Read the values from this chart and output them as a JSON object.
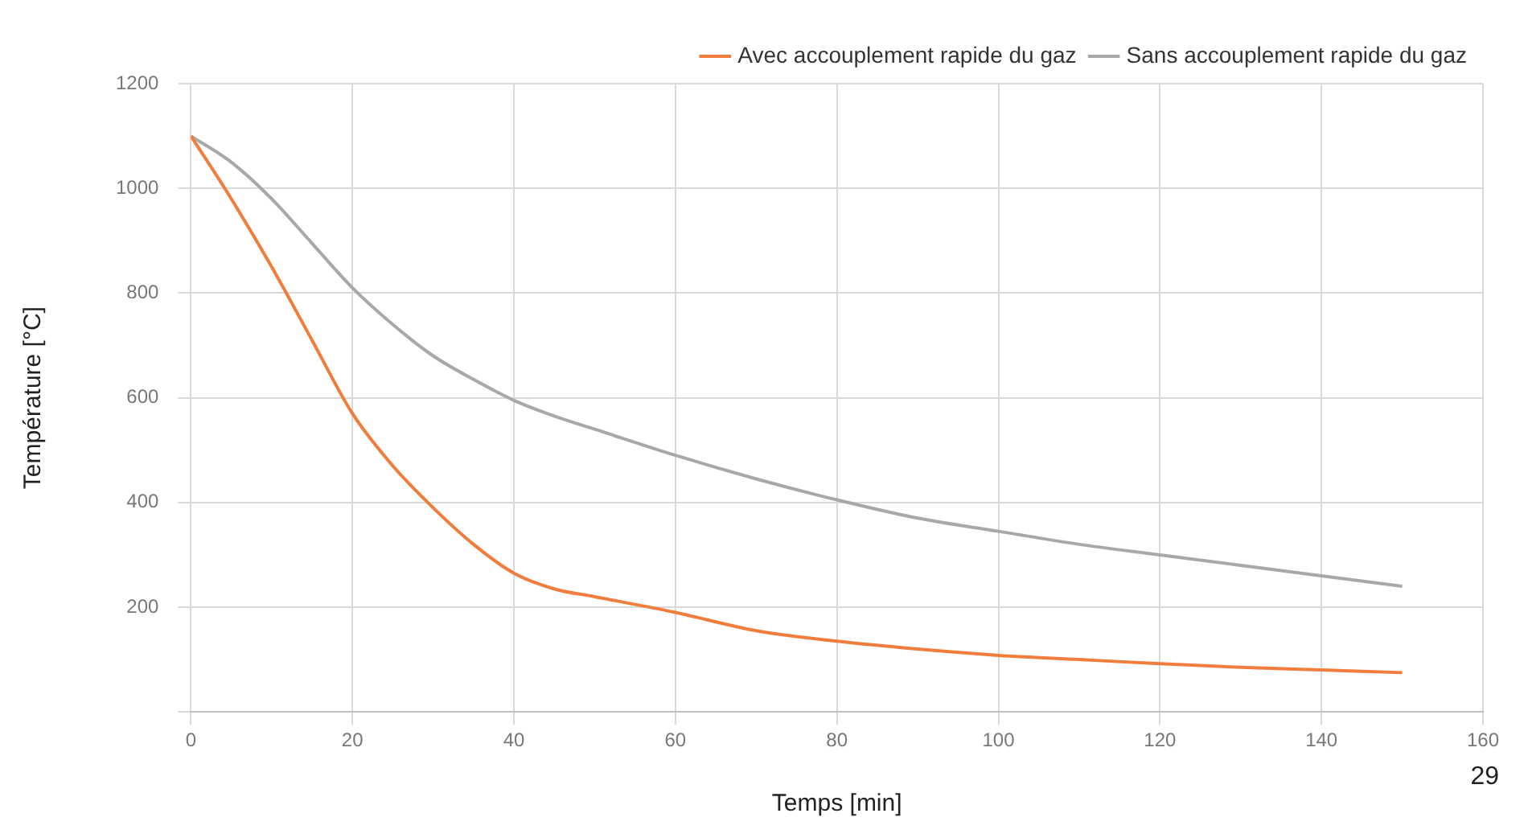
{
  "chart_data": {
    "type": "line",
    "xlabel": "Temps [min]",
    "ylabel": "Température [°C]",
    "x": [
      0,
      5,
      10,
      15,
      20,
      25,
      30,
      35,
      40,
      45,
      50,
      60,
      70,
      80,
      90,
      100,
      110,
      120,
      130,
      140,
      150
    ],
    "series": [
      {
        "name": "Avec accouplement rapide du gaz",
        "color": "#f07d3c",
        "values": [
          1100,
          980,
          850,
          710,
          570,
          470,
          390,
          320,
          265,
          235,
          220,
          190,
          155,
          135,
          120,
          108,
          100,
          92,
          85,
          80,
          75
        ]
      },
      {
        "name": "Sans accouplement rapide du gaz",
        "color": "#a8a8a8",
        "values": [
          1100,
          1050,
          980,
          895,
          810,
          740,
          680,
          635,
          595,
          565,
          540,
          490,
          445,
          405,
          370,
          345,
          320,
          300,
          280,
          260,
          240
        ]
      }
    ],
    "xlim": [
      0,
      160
    ],
    "xticks": [
      0,
      20,
      40,
      60,
      80,
      100,
      120,
      140,
      160
    ],
    "ylim": [
      0,
      1200
    ],
    "yticks": [
      {
        "value": 0,
        "label": null
      },
      200,
      400,
      600,
      800,
      1000,
      1200
    ],
    "grid": true,
    "legend": "top right",
    "marker": "none",
    "line_style": "solid",
    "annotations": [
      "29"
    ]
  }
}
